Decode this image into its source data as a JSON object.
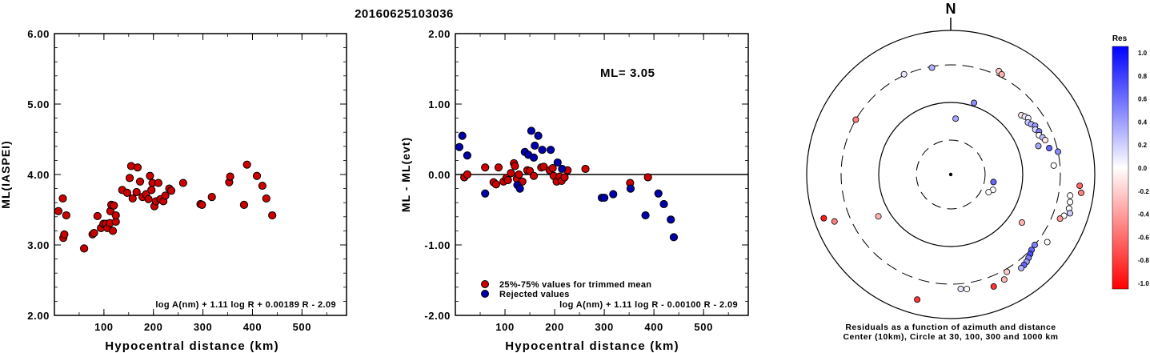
{
  "title": "20160625103036",
  "chart_data": [
    {
      "type": "scatter",
      "xlabel": "Hypocentral distance (km)",
      "ylabel": "ML(IASPEI)",
      "xlim": [
        0,
        590
      ],
      "ylim": [
        2.0,
        6.0
      ],
      "x_ticks": [
        "100",
        "200",
        "300",
        "400",
        "500"
      ],
      "y_ticks": [
        "2.00",
        "3.00",
        "4.00",
        "5.00",
        "6.00"
      ],
      "formula": "log A(nm) + 1.11 log R + 0.00189 R - 2.09",
      "series": [
        {
          "name": "",
          "color": "#cc0000",
          "points": [
            [
              8,
              3.48
            ],
            [
              17,
              3.66
            ],
            [
              18,
              3.1
            ],
            [
              20,
              3.15
            ],
            [
              24,
              3.42
            ],
            [
              60,
              2.95
            ],
            [
              77,
              3.15
            ],
            [
              80,
              3.17
            ],
            [
              87,
              3.41
            ],
            [
              94,
              3.24
            ],
            [
              99,
              3.3
            ],
            [
              104,
              3.3
            ],
            [
              107,
              3.24
            ],
            [
              112,
              3.31
            ],
            [
              113,
              3.48
            ],
            [
              115,
              3.57
            ],
            [
              118,
              3.2
            ],
            [
              120,
              3.56
            ],
            [
              124,
              3.33
            ],
            [
              124,
              3.42
            ],
            [
              137,
              3.78
            ],
            [
              147,
              3.74
            ],
            [
              152,
              3.95
            ],
            [
              155,
              4.12
            ],
            [
              158,
              3.66
            ],
            [
              166,
              3.75
            ],
            [
              168,
              4.1
            ],
            [
              173,
              3.9
            ],
            [
              178,
              3.68
            ],
            [
              185,
              3.72
            ],
            [
              190,
              3.65
            ],
            [
              193,
              3.98
            ],
            [
              196,
              3.78
            ],
            [
              198,
              3.88
            ],
            [
              202,
              3.55
            ],
            [
              205,
              3.62
            ],
            [
              210,
              3.88
            ],
            [
              214,
              3.65
            ],
            [
              220,
              3.62
            ],
            [
              224,
              3.7
            ],
            [
              232,
              3.8
            ],
            [
              236,
              3.77
            ],
            [
              260,
              3.88
            ],
            [
              295,
              3.58
            ],
            [
              298,
              3.57
            ],
            [
              318,
              3.68
            ],
            [
              353,
              3.89
            ],
            [
              355,
              3.97
            ],
            [
              383,
              3.57
            ],
            [
              389,
              4.14
            ],
            [
              409,
              3.98
            ],
            [
              420,
              3.84
            ],
            [
              428,
              3.66
            ],
            [
              440,
              3.42
            ]
          ]
        }
      ]
    },
    {
      "type": "scatter",
      "xlabel": "Hypocentral distance (km)",
      "ylabel": "ML - ML(evt)",
      "xlim": [
        0,
        590
      ],
      "ylim": [
        -2.0,
        2.0
      ],
      "x_ticks": [
        "100",
        "200",
        "300",
        "400",
        "500"
      ],
      "y_ticks": [
        "-2.00",
        "-1.00",
        "0.00",
        "1.00",
        "2.00"
      ],
      "annotation": "ML= 3.05",
      "formula": "log A(nm) + 1.11 log R - 0.00100 R - 2.09",
      "series": [
        {
          "name": "25%-75% values for trimmed mean",
          "color": "#cc0000",
          "points": [
            [
              18,
              -0.04
            ],
            [
              24,
              0.0
            ],
            [
              60,
              0.1
            ],
            [
              77,
              -0.11
            ],
            [
              82,
              -0.14
            ],
            [
              87,
              0.1
            ],
            [
              97,
              -0.1
            ],
            [
              103,
              -0.05
            ],
            [
              106,
              -0.08
            ],
            [
              112,
              0.02
            ],
            [
              118,
              0.16
            ],
            [
              120,
              0.12
            ],
            [
              124,
              -0.06
            ],
            [
              128,
              0.0
            ],
            [
              135,
              -0.1
            ],
            [
              145,
              0.06
            ],
            [
              150,
              0.05
            ],
            [
              158,
              -0.02
            ],
            [
              173,
              0.1
            ],
            [
              178,
              0.11
            ],
            [
              190,
              0.06
            ],
            [
              196,
              0.09
            ],
            [
              198,
              -0.02
            ],
            [
              204,
              -0.1
            ],
            [
              210,
              -0.03
            ],
            [
              214,
              -0.09
            ],
            [
              220,
              -0.04
            ],
            [
              226,
              0.06
            ],
            [
              262,
              0.08
            ],
            [
              352,
              -0.12
            ],
            [
              388,
              -0.04
            ]
          ]
        },
        {
          "name": "Rejected values",
          "color": "#0000aa",
          "points": [
            [
              8,
              0.39
            ],
            [
              14,
              0.55
            ],
            [
              24,
              0.27
            ],
            [
              60,
              -0.27
            ],
            [
              125,
              -0.15
            ],
            [
              130,
              -0.2
            ],
            [
              140,
              0.32
            ],
            [
              147,
              0.28
            ],
            [
              153,
              0.62
            ],
            [
              158,
              0.24
            ],
            [
              160,
              0.41
            ],
            [
              167,
              0.55
            ],
            [
              175,
              0.35
            ],
            [
              192,
              0.35
            ],
            [
              206,
              0.17
            ],
            [
              215,
              0.08
            ],
            [
              295,
              -0.33
            ],
            [
              300,
              -0.33
            ],
            [
              318,
              -0.28
            ],
            [
              353,
              -0.2
            ],
            [
              383,
              -0.58
            ],
            [
              409,
              -0.27
            ],
            [
              420,
              -0.42
            ],
            [
              434,
              -0.64
            ],
            [
              440,
              -0.89
            ]
          ]
        }
      ]
    },
    {
      "type": "polar-scatter",
      "north_label": "N",
      "caption_line1": "Residuals as a function of azimuth and distance",
      "caption_line2": "Center (10km), Circle at 30, 100, 300 and 1000 km",
      "rings_km": [
        30,
        100,
        300,
        1000
      ],
      "center_km": 10,
      "colorbar": {
        "title": "Res",
        "labels": [
          "1.0",
          "0.8",
          "0.6",
          "0.4",
          "0.2",
          "0.0",
          "-0.2",
          "-0.4",
          "-0.6",
          "-0.8",
          "-1.0"
        ],
        "top_color": "#0000ff",
        "mid_color": "#ffffff",
        "bottom_color": "#ff0000"
      },
      "stations": [
        {
          "az": 5,
          "dist_km": 60,
          "res": 0.35
        },
        {
          "az": 18,
          "dist_km": 110,
          "res": 0.45
        },
        {
          "az": 100,
          "dist_km": 40,
          "res": 0.6
        },
        {
          "az": 110,
          "dist_km": 42,
          "res": 0.0
        },
        {
          "az": 115,
          "dist_km": 38,
          "res": 0.0
        },
        {
          "az": -25,
          "dist_km": 310,
          "res": 0.1
        },
        {
          "az": -10,
          "dist_km": 290,
          "res": 0.3
        },
        {
          "az": 25,
          "dist_km": 350,
          "res": -0.2
        },
        {
          "az": 27,
          "dist_km": 330,
          "res": -0.3
        },
        {
          "az": -60,
          "dist_km": 300,
          "res": -0.5
        },
        {
          "az": 50,
          "dist_km": 180,
          "res": -0.1
        },
        {
          "az": 52,
          "dist_km": 190,
          "res": 0.1
        },
        {
          "az": 54,
          "dist_km": 200,
          "res": 0.05
        },
        {
          "az": 56,
          "dist_km": 185,
          "res": 0.2
        },
        {
          "az": 58,
          "dist_km": 195,
          "res": 0.3
        },
        {
          "az": 60,
          "dist_km": 210,
          "res": 0.4
        },
        {
          "az": 62,
          "dist_km": 200,
          "res": 0.15
        },
        {
          "az": 64,
          "dist_km": 215,
          "res": 0.5
        },
        {
          "az": 66,
          "dist_km": 205,
          "res": 0.0
        },
        {
          "az": 68,
          "dist_km": 220,
          "res": 0.25
        },
        {
          "az": 70,
          "dist_km": 230,
          "res": -0.1
        },
        {
          "az": 72,
          "dist_km": 180,
          "res": 0.35
        },
        {
          "az": 75,
          "dist_km": 240,
          "res": 0.6
        },
        {
          "az": 78,
          "dist_km": 300,
          "res": 0.45
        },
        {
          "az": 85,
          "dist_km": 250,
          "res": 0.0
        },
        {
          "az": 95,
          "dist_km": 600,
          "res": -0.6
        },
        {
          "az": 98,
          "dist_km": 650,
          "res": -0.5
        },
        {
          "az": 100,
          "dist_km": 450,
          "res": 0.0
        },
        {
          "az": 103,
          "dist_km": 470,
          "res": 0.0
        },
        {
          "az": 106,
          "dist_km": 480,
          "res": 0.0
        },
        {
          "az": 108,
          "dist_km": 520,
          "res": 0.2
        },
        {
          "az": 110,
          "dist_km": 440,
          "res": 0.0
        },
        {
          "az": 112,
          "dist_km": 400,
          "res": -0.4
        },
        {
          "az": 125,
          "dist_km": 400,
          "res": 0.0
        },
        {
          "az": 130,
          "dist_km": 300,
          "res": 0.5
        },
        {
          "az": 133,
          "dist_km": 310,
          "res": 0.6
        },
        {
          "az": 135,
          "dist_km": 330,
          "res": 0.7
        },
        {
          "az": 137,
          "dist_km": 350,
          "res": 0.5
        },
        {
          "az": 139,
          "dist_km": 370,
          "res": 0.4
        },
        {
          "az": 141,
          "dist_km": 380,
          "res": 0.6
        },
        {
          "az": 143,
          "dist_km": 390,
          "res": 0.3
        },
        {
          "az": 124,
          "dist_km": 150,
          "res": -0.3
        },
        {
          "az": 150,
          "dist_km": 330,
          "res": -0.2
        },
        {
          "az": 153,
          "dist_km": 400,
          "res": -0.3
        },
        {
          "az": 159,
          "dist_km": 430,
          "res": -0.8
        },
        {
          "az": 172,
          "dist_km": 370,
          "res": 0.0
        },
        {
          "az": 175,
          "dist_km": 360,
          "res": 0.1
        },
        {
          "az": 195,
          "dist_km": 600,
          "res": -0.8
        },
        {
          "az": 240,
          "dist_km": 140,
          "res": -0.3
        },
        {
          "az": 248,
          "dist_km": 520,
          "res": -0.5
        },
        {
          "az": 251,
          "dist_km": 710,
          "res": -0.9
        }
      ]
    }
  ]
}
